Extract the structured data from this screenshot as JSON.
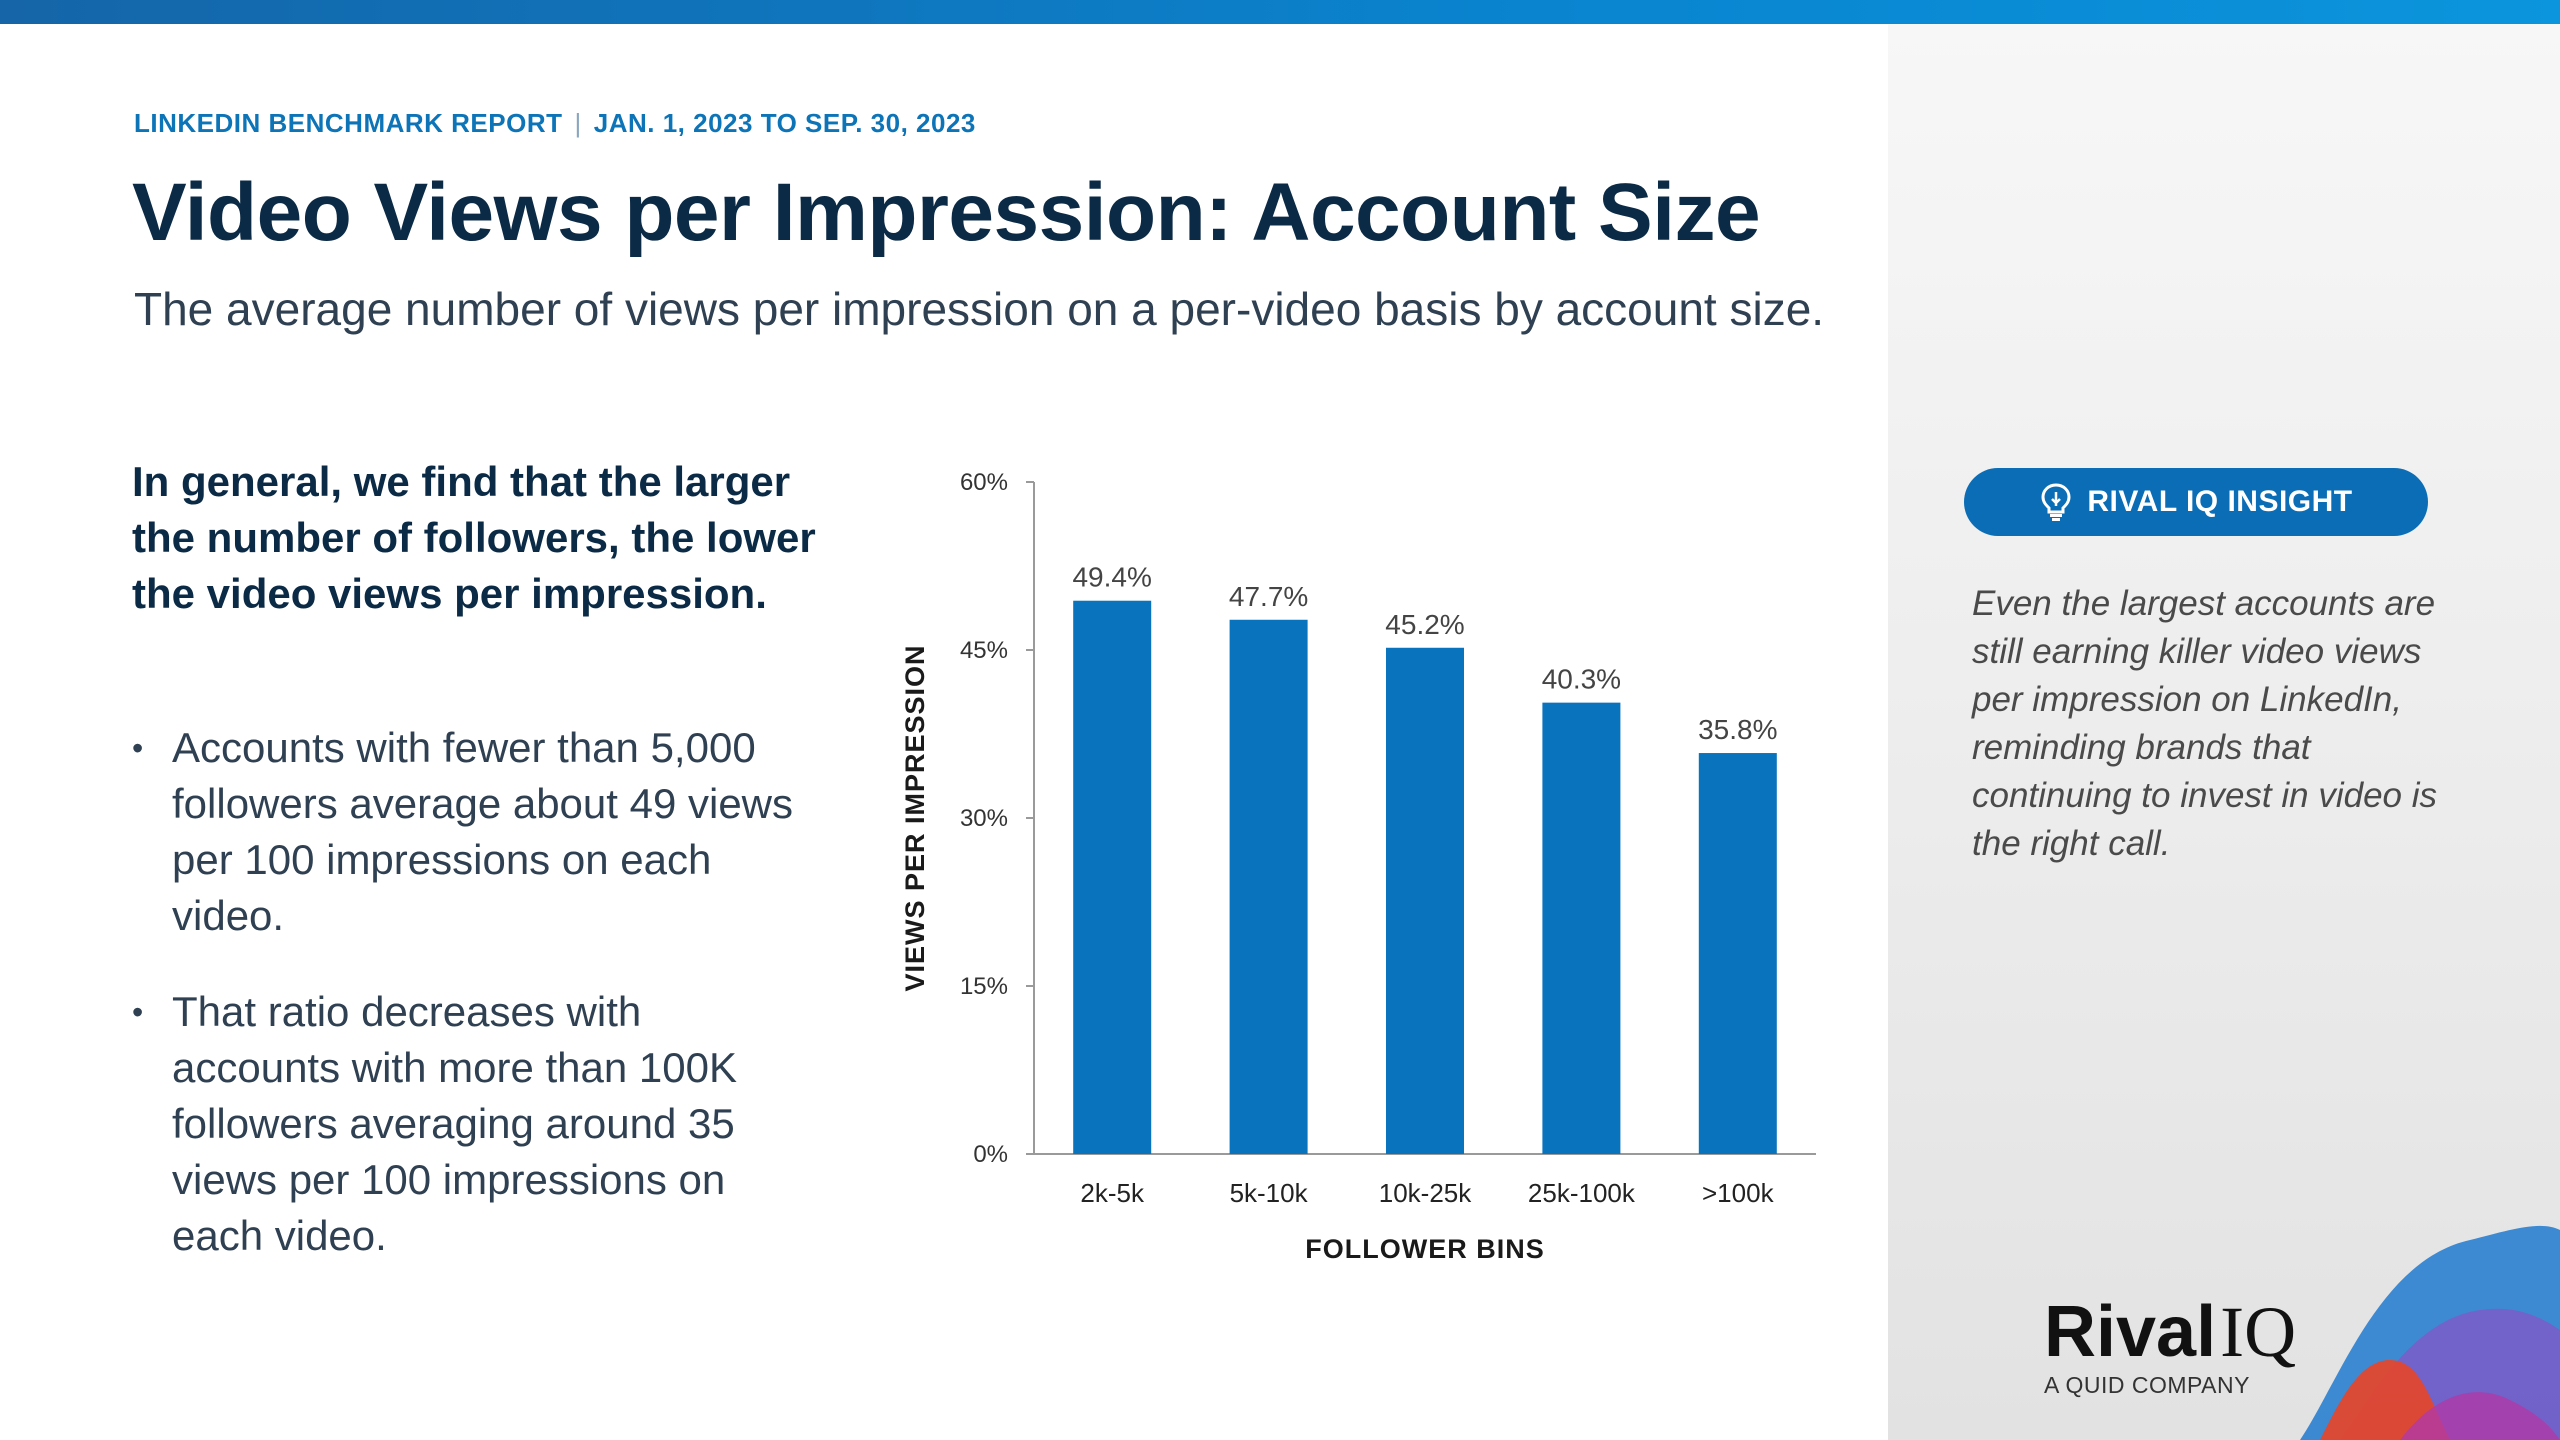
{
  "header": {
    "report": "LINKEDIN BENCHMARK REPORT",
    "separator": "|",
    "date_range": "JAN. 1, 2023 TO SEP. 30, 2023",
    "title": "Video Views per Impression: Account Size",
    "subtitle": "The average number of views per impression on a per-video basis by account size."
  },
  "body": {
    "lead": "In general, we find that the larger the number of followers, the lower the video views per impression.",
    "bullet_glyph": "•",
    "bullets": [
      "Accounts with fewer than 5,000 followers average about 49 views per 100 impressions on each video.",
      "That ratio decreases with accounts with more than 100K followers averaging around 35 views per 100 impressions on each video."
    ]
  },
  "insight": {
    "label": "RIVAL IQ INSIGHT",
    "icon": "lightbulb-icon",
    "text": "Even the largest accounts are still earning killer video views per impression on LinkedIn, reminding brands that continuing to invest in video is the right call."
  },
  "brand": {
    "name_bold": "Rival",
    "name_light": "IQ",
    "tagline": "A QUID COMPANY"
  },
  "colors": {
    "bar": "#0a73bd",
    "title": "#0b2a45",
    "eyebrow": "#0d74b8",
    "pill": "#0a6db5"
  },
  "chart_data": {
    "type": "bar",
    "categories": [
      "2k-5k",
      "5k-10k",
      "10k-25k",
      "25k-100k",
      ">100k"
    ],
    "values": [
      49.4,
      47.7,
      45.2,
      40.3,
      35.8
    ],
    "data_labels": [
      "49.4%",
      "47.7%",
      "45.2%",
      "40.3%",
      "35.8%"
    ],
    "y_ticks": [
      0,
      15,
      30,
      45,
      60
    ],
    "y_tick_labels": [
      "0%",
      "15%",
      "30%",
      "45%",
      "60%"
    ],
    "ylim": [
      0,
      60
    ],
    "xlabel": "FOLLOWER BINS",
    "ylabel": "VIEWS PER IMPRESSION",
    "grid": false,
    "legend": "none"
  }
}
